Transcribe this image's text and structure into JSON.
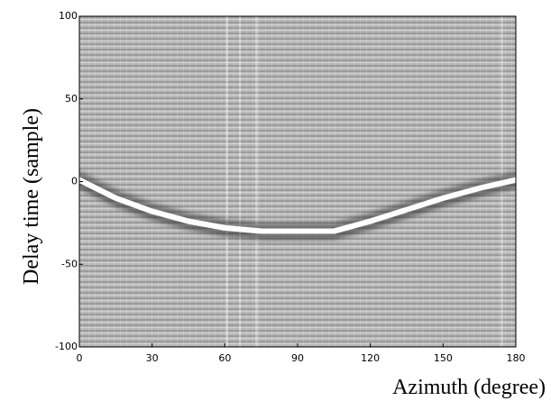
{
  "chart_data": {
    "type": "line",
    "x_label": "Azimuth (degree)",
    "y_label": "Delay time (sample)",
    "xlim": [
      0,
      180
    ],
    "xticks": [
      0,
      30,
      60,
      90,
      120,
      150,
      180
    ],
    "ylim": [
      -100,
      100
    ],
    "yticks": [
      -100,
      -50,
      0,
      50,
      100
    ],
    "x": [
      0,
      15,
      30,
      45,
      60,
      75,
      90,
      105,
      120,
      135,
      150,
      165,
      180
    ],
    "series": [
      {
        "color": "#ffffff",
        "values": [
          1,
          -10,
          -18,
          -24,
          -28,
          -30,
          -30,
          -30,
          -24,
          -17,
          -10,
          -4,
          1
        ]
      }
    ]
  }
}
